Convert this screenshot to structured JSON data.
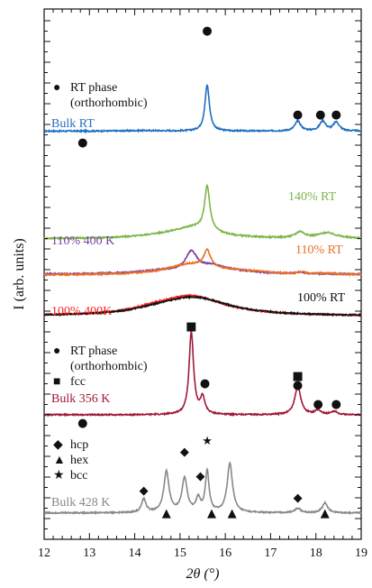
{
  "chart_data": {
    "type": "line",
    "title": "",
    "xlabel": "2θ (°)",
    "ylabel": "I (arb. units)",
    "xlim": [
      12,
      19
    ],
    "xticks": [
      "12",
      "13",
      "14",
      "15",
      "16",
      "17",
      "18",
      "19"
    ],
    "y_ticks_labeled": false,
    "grid": false,
    "series": [
      {
        "name": "Bulk RT",
        "color": "#1f6fbf",
        "base": 2.6,
        "peaks": [
          [
            15.6,
            4.2,
            0.06
          ],
          [
            17.6,
            0.9,
            0.08
          ],
          [
            18.15,
            0.9,
            0.08
          ],
          [
            18.45,
            0.8,
            0.08
          ],
          [
            14.2,
            0.05,
            0.5
          ]
        ]
      },
      {
        "name": "140% RT",
        "color": "#7ab648",
        "base": 1.95,
        "peaks": [
          [
            15.6,
            4.0,
            0.07
          ],
          [
            15.3,
            1.0,
            0.6
          ],
          [
            17.65,
            0.55,
            0.12
          ],
          [
            18.25,
            0.5,
            0.25
          ],
          [
            14.5,
            0.15,
            0.6
          ]
        ]
      },
      {
        "name": "110% 400 K",
        "color": "#7a3fa0",
        "base": 1.55,
        "peaks": [
          [
            15.25,
            1.75,
            0.15
          ],
          [
            15.7,
            0.6,
            0.35
          ],
          [
            14.6,
            0.3,
            0.6
          ],
          [
            16.2,
            0.2,
            0.6
          ],
          [
            17.65,
            0.15,
            0.1
          ]
        ]
      },
      {
        "name": "110% RT",
        "color": "#e86f24",
        "base": 1.55,
        "peaks": [
          [
            15.6,
            1.55,
            0.09
          ],
          [
            15.2,
            0.9,
            0.6
          ],
          [
            16.3,
            0.3,
            0.8
          ],
          [
            17.7,
            0.18,
            0.1
          ],
          [
            18.2,
            0.12,
            0.2
          ]
        ]
      },
      {
        "name": "100% 400K",
        "color": "#ff2020",
        "base": 0.55,
        "peaks": [
          [
            15.25,
            1.8,
            0.9
          ],
          [
            14.4,
            0.3,
            0.5
          ]
        ]
      },
      {
        "name": "100% RT",
        "color": "#111111",
        "base": 0.55,
        "peaks": [
          [
            15.3,
            1.7,
            0.95
          ],
          [
            14.5,
            0.2,
            0.5
          ]
        ]
      },
      {
        "name": "Bulk 356 K",
        "color": "#a01838",
        "base": 3.4,
        "peaks": [
          [
            15.25,
            7.5,
            0.06
          ],
          [
            15.5,
            1.5,
            0.06
          ],
          [
            17.6,
            2.6,
            0.08
          ],
          [
            18.05,
            0.4,
            0.08
          ],
          [
            18.4,
            0.3,
            0.08
          ]
        ]
      },
      {
        "name": "Bulk 428 K",
        "color": "#888888",
        "base": 2.1,
        "peaks": [
          [
            14.2,
            1.2,
            0.06
          ],
          [
            14.7,
            3.7,
            0.07
          ],
          [
            15.1,
            3.1,
            0.07
          ],
          [
            15.4,
            1.2,
            0.06
          ],
          [
            15.6,
            3.7,
            0.05
          ],
          [
            16.1,
            4.5,
            0.07
          ],
          [
            17.6,
            0.4,
            0.08
          ],
          [
            18.2,
            0.9,
            0.07
          ]
        ]
      }
    ],
    "legends": [
      {
        "lines": [
          {
            "symbol": "●",
            "text": "RT phase"
          },
          {
            "symbol": "",
            "text": "(orthorhombic)"
          }
        ]
      },
      {
        "lines": [
          {
            "symbol": "●",
            "text": "RT phase"
          },
          {
            "symbol": "",
            "text": "(orthorhombic)"
          },
          {
            "symbol": "■",
            "text": "fcc"
          }
        ]
      },
      {
        "lines": [
          {
            "symbol": "◆",
            "text": "hcp"
          },
          {
            "symbol": "▲",
            "text": "hex"
          },
          {
            "symbol": "★",
            "text": "bcc"
          }
        ]
      }
    ]
  },
  "series_labels": [
    "Bulk RT",
    "140% RT",
    "110% 400 K",
    "110% RT",
    "100% 400K",
    "100% RT",
    "Bulk 356 K",
    "Bulk 428 K"
  ]
}
